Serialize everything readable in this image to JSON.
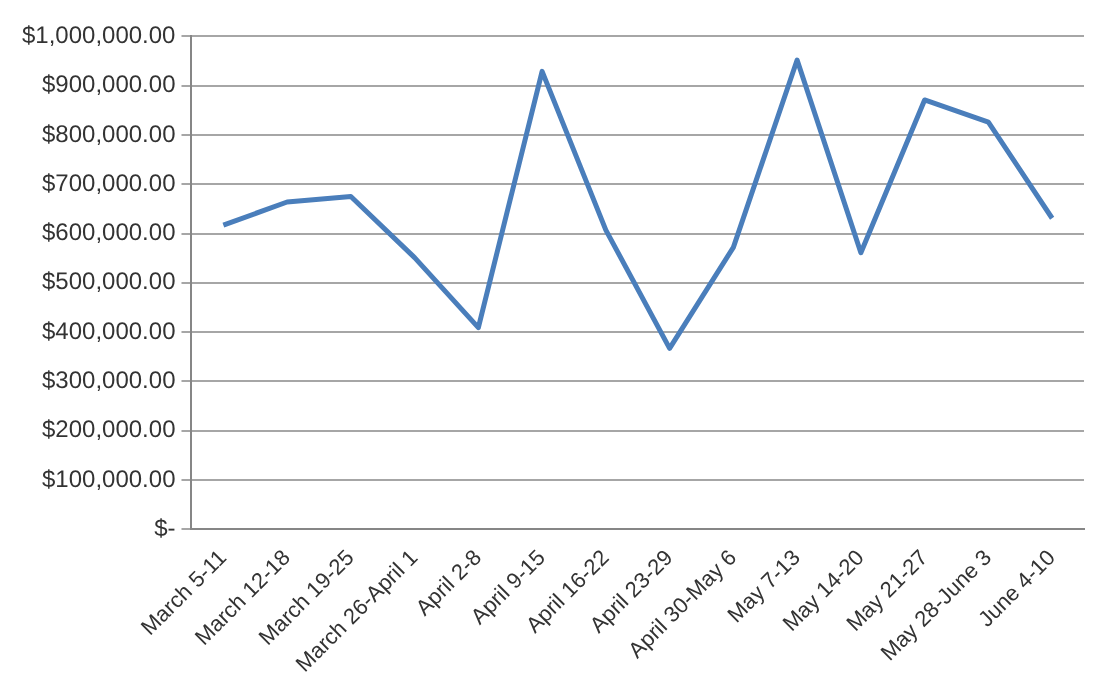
{
  "chart_data": {
    "type": "line",
    "categories": [
      "March 5-11",
      "March 12-18",
      "March 19-25",
      "March 26-April 1",
      "April 2-8",
      "April 9-15",
      "April 16-22",
      "April 23-29",
      "April 30-May 6",
      "May 7-13",
      "May 14-20",
      "May 21-27",
      "May 28-June 3",
      "June 4-10"
    ],
    "series": [
      {
        "color": "#4a7ebb",
        "values": [
          617000,
          664000,
          675000,
          551000,
          409000,
          929000,
          607000,
          367000,
          572000,
          952000,
          561000,
          871000,
          826000,
          631000
        ]
      }
    ],
    "ylim": [
      0,
      1000000
    ],
    "yticks": [
      {
        "value": 0,
        "label": "$-"
      },
      {
        "value": 100000,
        "label": "$100,000.00"
      },
      {
        "value": 200000,
        "label": "$200,000.00"
      },
      {
        "value": 300000,
        "label": "$300,000.00"
      },
      {
        "value": 400000,
        "label": "$400,000.00"
      },
      {
        "value": 500000,
        "label": "$500,000.00"
      },
      {
        "value": 600000,
        "label": "$600,000.00"
      },
      {
        "value": 700000,
        "label": "$700,000.00"
      },
      {
        "value": 800000,
        "label": "$800,000.00"
      },
      {
        "value": 900000,
        "label": "$900,000.00"
      },
      {
        "value": 1000000,
        "label": "$1,000,000.00"
      }
    ],
    "grid": "y",
    "legend": false,
    "marker": "none",
    "line_style": "solid"
  }
}
